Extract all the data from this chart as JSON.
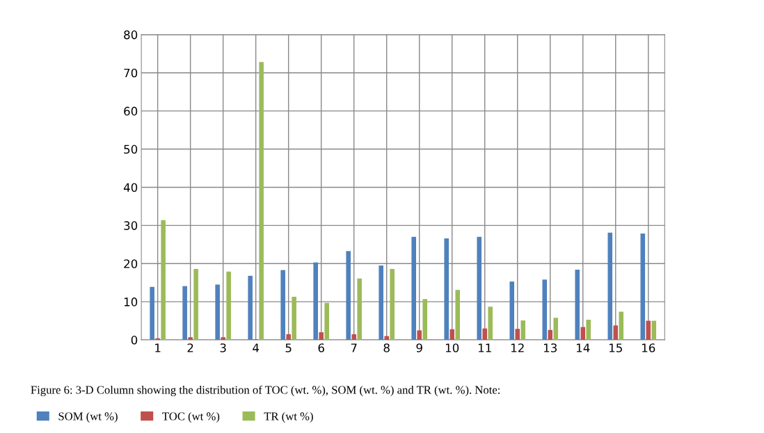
{
  "chart_data": {
    "type": "bar",
    "categories": [
      "1",
      "2",
      "3",
      "4",
      "5",
      "6",
      "7",
      "8",
      "9",
      "10",
      "11",
      "12",
      "13",
      "14",
      "15",
      "16"
    ],
    "series": [
      {
        "name": "SOM (wt %)",
        "color": "#4f81bd",
        "values": [
          13.9,
          14.1,
          14.5,
          16.8,
          18.3,
          20.3,
          23.3,
          19.5,
          27.0,
          26.6,
          27.0,
          15.3,
          15.8,
          18.4,
          28.1,
          27.9
        ]
      },
      {
        "name": "TOC (wt %)",
        "color": "#c0504d",
        "values": [
          0.4,
          0.7,
          0.7,
          0.2,
          1.5,
          2.0,
          1.5,
          1.0,
          2.5,
          2.8,
          3.0,
          2.9,
          2.6,
          3.4,
          3.8,
          5.0
        ]
      },
      {
        "name": "TR (wt %)",
        "color": "#9bbb59",
        "values": [
          31.4,
          18.6,
          17.9,
          72.8,
          11.3,
          9.7,
          16.1,
          18.6,
          10.7,
          13.1,
          8.7,
          5.1,
          5.8,
          5.3,
          7.4,
          5.0
        ]
      }
    ],
    "ylim": [
      0,
      80
    ],
    "yticks": [
      0,
      10,
      20,
      30,
      40,
      50,
      60,
      70,
      80
    ],
    "grid": true,
    "legend": "bottom",
    "annotations": [
      "Figure 6: 3-D Column showing the distribution of TOC (wt. %), SOM (wt. %) and TR (wt. %). Note:"
    ]
  }
}
